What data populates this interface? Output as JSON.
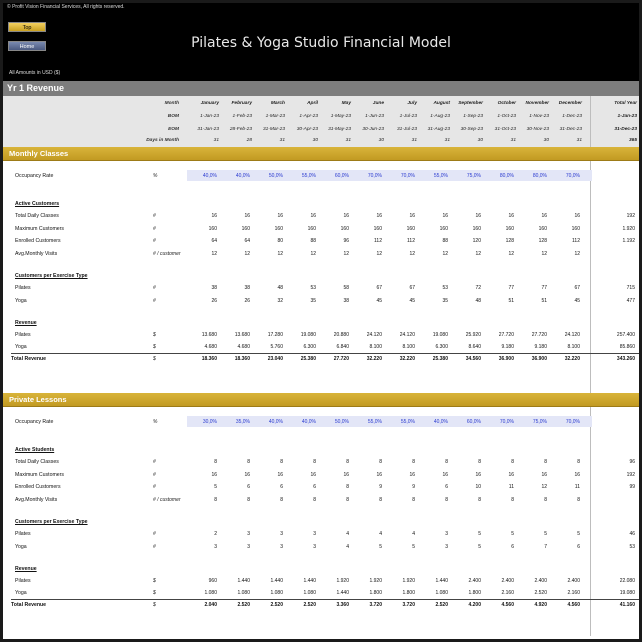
{
  "header": {
    "copyright": "© Profit Vision Financial Services, All rights reserved.",
    "top_button": "Top",
    "home_button": "Home",
    "title": "Pilates & Yoga Studio Financial Model",
    "units_note": "All Amounts in  USD ($)"
  },
  "section_title": "Yr 1 Revenue",
  "dates": {
    "row_labels": [
      "Month",
      "BOM",
      "EOM",
      "Days in Month"
    ],
    "months": [
      "January",
      "February",
      "March",
      "April",
      "May",
      "June",
      "July",
      "August",
      "September",
      "October",
      "November",
      "December",
      "Total Year"
    ],
    "bom": [
      "1-Jan-23",
      "1-Feb-23",
      "1-Mar-23",
      "1-Apr-23",
      "1-May-23",
      "1-Jun-23",
      "1-Jul-23",
      "1-Aug-23",
      "1-Sep-23",
      "1-Oct-23",
      "1-Nov-23",
      "1-Dec-23",
      "1-Jan-23"
    ],
    "eom": [
      "31-Jan-23",
      "28-Feb-23",
      "31-Mar-23",
      "30-Apr-23",
      "31-May-23",
      "30-Jun-23",
      "31-Jul-23",
      "31-Aug-23",
      "30-Sep-23",
      "31-Oct-23",
      "30-Nov-23",
      "31-Dec-23",
      "31-Dec-23"
    ],
    "days": [
      "31",
      "28",
      "31",
      "30",
      "31",
      "30",
      "31",
      "31",
      "30",
      "31",
      "30",
      "31",
      "365"
    ]
  },
  "monthly_classes": {
    "title": "Monthly Classes",
    "occupancy": {
      "label": "Occupancy Rate",
      "unit": "%",
      "values": [
        "40,0%",
        "40,0%",
        "50,0%",
        "55,0%",
        "60,0%",
        "70,0%",
        "70,0%",
        "55,0%",
        "75,0%",
        "80,0%",
        "80,0%",
        "70,0%",
        ""
      ]
    },
    "active_title": "Active Customers",
    "active_rows": [
      {
        "label": "Total Daily Classes",
        "unit": "#",
        "values": [
          "16",
          "16",
          "16",
          "16",
          "16",
          "16",
          "16",
          "16",
          "16",
          "16",
          "16",
          "16",
          "192"
        ]
      },
      {
        "label": "Maximum Customers",
        "unit": "#",
        "values": [
          "160",
          "160",
          "160",
          "160",
          "160",
          "160",
          "160",
          "160",
          "160",
          "160",
          "160",
          "160",
          "1.920"
        ]
      },
      {
        "label": "Enrolled Customers",
        "unit": "#",
        "values": [
          "64",
          "64",
          "80",
          "88",
          "96",
          "112",
          "112",
          "88",
          "120",
          "128",
          "128",
          "112",
          "1.192"
        ]
      },
      {
        "label": "Avg.Monthly Visits",
        "unit": "# / customer",
        "values": [
          "12",
          "12",
          "12",
          "12",
          "12",
          "12",
          "12",
          "12",
          "12",
          "12",
          "12",
          "12",
          ""
        ]
      }
    ],
    "type_title": "Customers per Exercise Type",
    "type_rows": [
      {
        "label": "Pilates",
        "unit": "#",
        "values": [
          "38",
          "38",
          "48",
          "53",
          "58",
          "67",
          "67",
          "53",
          "72",
          "77",
          "77",
          "67",
          "715"
        ]
      },
      {
        "label": "Yoga",
        "unit": "#",
        "values": [
          "26",
          "26",
          "32",
          "35",
          "38",
          "45",
          "45",
          "35",
          "48",
          "51",
          "51",
          "45",
          "477"
        ]
      }
    ],
    "rev_title": "Revenue",
    "rev_rows": [
      {
        "label": "Pilates",
        "unit": "$",
        "values": [
          "13.680",
          "13.680",
          "17.280",
          "19.080",
          "20.880",
          "24.120",
          "24.120",
          "19.080",
          "25.920",
          "27.720",
          "27.720",
          "24.120",
          "257.400"
        ]
      },
      {
        "label": "Yoga",
        "unit": "$",
        "values": [
          "4.680",
          "4.680",
          "5.760",
          "6.300",
          "6.840",
          "8.100",
          "8.100",
          "6.300",
          "8.640",
          "9.180",
          "9.180",
          "8.100",
          "85.860"
        ]
      }
    ],
    "total": {
      "label": "Total Revenue",
      "unit": "$",
      "values": [
        "18.360",
        "18.360",
        "23.040",
        "25.380",
        "27.720",
        "32.220",
        "32.220",
        "25.380",
        "34.560",
        "36.900",
        "36.900",
        "32.220",
        "343.260"
      ]
    }
  },
  "private_lessons": {
    "title": "Private Lessons",
    "occupancy": {
      "label": "Occupancy Rate",
      "unit": "%",
      "values": [
        "30,0%",
        "35,0%",
        "40,0%",
        "40,0%",
        "50,0%",
        "55,0%",
        "55,0%",
        "40,0%",
        "60,0%",
        "70,0%",
        "75,0%",
        "70,0%",
        ""
      ]
    },
    "active_title": "Active Students",
    "active_rows": [
      {
        "label": "Total Daily Classes",
        "unit": "#",
        "values": [
          "8",
          "8",
          "8",
          "8",
          "8",
          "8",
          "8",
          "8",
          "8",
          "8",
          "8",
          "8",
          "96"
        ]
      },
      {
        "label": "Maximum Customers",
        "unit": "#",
        "values": [
          "16",
          "16",
          "16",
          "16",
          "16",
          "16",
          "16",
          "16",
          "16",
          "16",
          "16",
          "16",
          "192"
        ]
      },
      {
        "label": "Enrolled Customers",
        "unit": "#",
        "values": [
          "5",
          "6",
          "6",
          "6",
          "8",
          "9",
          "9",
          "6",
          "10",
          "11",
          "12",
          "11",
          "99"
        ]
      },
      {
        "label": "Avg.Monthly Visits",
        "unit": "# / customer",
        "values": [
          "8",
          "8",
          "8",
          "8",
          "8",
          "8",
          "8",
          "8",
          "8",
          "8",
          "8",
          "8",
          ""
        ]
      }
    ],
    "type_title": "Customers per Exercise Type",
    "type_rows": [
      {
        "label": "Pilates",
        "unit": "#",
        "values": [
          "2",
          "3",
          "3",
          "3",
          "4",
          "4",
          "4",
          "3",
          "5",
          "5",
          "5",
          "5",
          "46"
        ]
      },
      {
        "label": "Yoga",
        "unit": "#",
        "values": [
          "3",
          "3",
          "3",
          "3",
          "4",
          "5",
          "5",
          "3",
          "5",
          "6",
          "7",
          "6",
          "53"
        ]
      }
    ],
    "rev_title": "Revenue",
    "rev_rows": [
      {
        "label": "Pilates",
        "unit": "$",
        "values": [
          "960",
          "1.440",
          "1.440",
          "1.440",
          "1.920",
          "1.920",
          "1.920",
          "1.440",
          "2.400",
          "2.400",
          "2.400",
          "2.400",
          "22.080"
        ]
      },
      {
        "label": "Yoga",
        "unit": "$",
        "values": [
          "1.080",
          "1.080",
          "1.080",
          "1.080",
          "1.440",
          "1.800",
          "1.800",
          "1.080",
          "1.800",
          "2.160",
          "2.520",
          "2.160",
          "19.080"
        ]
      }
    ],
    "total": {
      "label": "Total Revenue",
      "unit": "$",
      "values": [
        "2.040",
        "2.520",
        "2.520",
        "2.520",
        "3.360",
        "3.720",
        "3.720",
        "2.520",
        "4.200",
        "4.560",
        "4.920",
        "4.560",
        "41.160"
      ]
    }
  }
}
